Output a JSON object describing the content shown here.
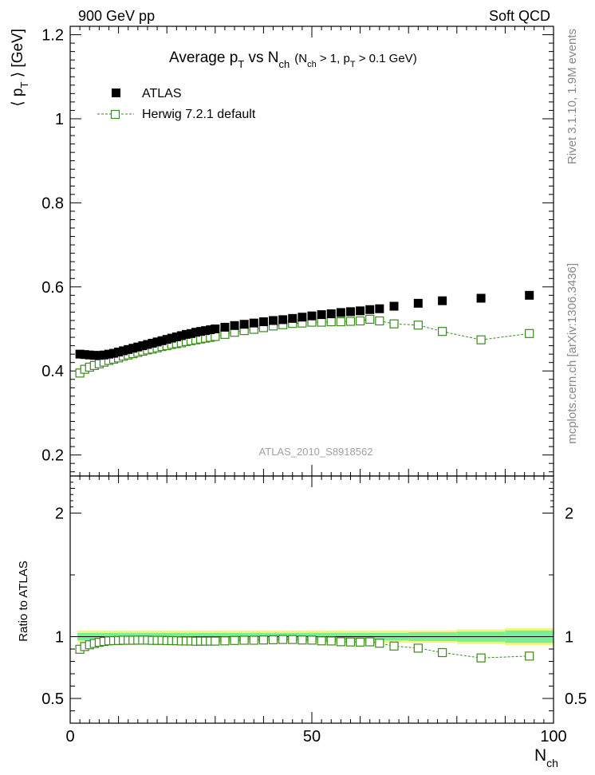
{
  "header": {
    "left": "900 GeV pp",
    "right": "Soft QCD"
  },
  "side_labels": {
    "rivet": "Rivet 3.1.10,  1.9M events",
    "mcplots": "mcplots.cern.ch [arXiv:1306.3436]"
  },
  "colors": {
    "data": "#000000",
    "mc": "#3a8a1a",
    "band_inner": "#79ee94",
    "band_outer": "#f5f57a",
    "watermark": "#a0a0a0"
  },
  "chart_data": {
    "type": "scatter",
    "title": {
      "main": "Average p",
      "sub1": "T",
      "mid": " vs N",
      "sub2": "ch",
      "cut_open": "(N",
      "cut_sub1": "ch",
      "cut_mid": " > 1, p",
      "cut_sub2": "T",
      "cut_close": " > 0.1 GeV)"
    },
    "watermark": "ATLAS_2010_S8918562",
    "ylabel": {
      "open": "⟨ p",
      "sub": "T",
      "close": " ⟩ [GeV]"
    },
    "ratio_ylabel": "Ratio to ATLAS",
    "xlabel": {
      "main": "N",
      "sub": "ch"
    },
    "xlim": [
      0,
      100
    ],
    "ylim": [
      0.15,
      1.22
    ],
    "ratio_ylim": [
      0.3,
      2.3
    ],
    "x_ticks": [
      0,
      50,
      100
    ],
    "x_tick_labels": [
      "0",
      "50",
      "100"
    ],
    "y_ticks": [
      0.2,
      0.4,
      0.6,
      0.8,
      1,
      1.2
    ],
    "y_tick_labels": [
      "0.2",
      "0.4",
      "0.6",
      "0.8",
      "1",
      "1.2"
    ],
    "ratio_ticks": [
      0.5,
      1,
      2
    ],
    "ratio_tick_labels": [
      "0.5",
      "1",
      "2"
    ],
    "legend": [
      {
        "name": "ATLAS",
        "marker": "filled-square"
      },
      {
        "name": "Herwig 7.2.1 default",
        "marker": "open-square-dashed"
      }
    ],
    "series": [
      {
        "name": "ATLAS",
        "x": [
          2,
          3,
          4,
          5,
          6,
          7,
          8,
          9,
          10,
          11,
          12,
          13,
          14,
          15,
          16,
          17,
          18,
          19,
          20,
          21,
          22,
          23,
          24,
          25,
          26,
          27,
          28,
          29,
          30,
          32,
          34,
          36,
          38,
          40,
          42,
          44,
          46,
          48,
          50,
          52,
          54,
          56,
          58,
          60,
          62,
          64,
          67,
          72,
          77,
          85,
          95
        ],
        "y": [
          0.44,
          0.439,
          0.438,
          0.437,
          0.437,
          0.438,
          0.44,
          0.442,
          0.445,
          0.448,
          0.451,
          0.454,
          0.457,
          0.46,
          0.463,
          0.466,
          0.469,
          0.472,
          0.475,
          0.478,
          0.481,
          0.484,
          0.487,
          0.489,
          0.492,
          0.494,
          0.496,
          0.498,
          0.5,
          0.504,
          0.508,
          0.511,
          0.514,
          0.517,
          0.52,
          0.522,
          0.525,
          0.528,
          0.531,
          0.534,
          0.536,
          0.539,
          0.541,
          0.543,
          0.546,
          0.548,
          0.554,
          0.561,
          0.567,
          0.573,
          0.58
        ]
      },
      {
        "name": "Herwig 7.2.1 default",
        "x": [
          2,
          3,
          4,
          5,
          6,
          7,
          8,
          9,
          10,
          11,
          12,
          13,
          14,
          15,
          16,
          17,
          18,
          19,
          20,
          21,
          22,
          23,
          24,
          25,
          26,
          27,
          28,
          29,
          30,
          32,
          34,
          36,
          38,
          40,
          42,
          44,
          46,
          48,
          50,
          52,
          54,
          56,
          58,
          60,
          62,
          64,
          67,
          72,
          77,
          85,
          95
        ],
        "y": [
          0.395,
          0.404,
          0.409,
          0.413,
          0.417,
          0.421,
          0.425,
          0.428,
          0.431,
          0.435,
          0.438,
          0.441,
          0.444,
          0.447,
          0.45,
          0.452,
          0.455,
          0.458,
          0.46,
          0.463,
          0.465,
          0.467,
          0.47,
          0.472,
          0.474,
          0.476,
          0.478,
          0.48,
          0.482,
          0.487,
          0.492,
          0.496,
          0.499,
          0.503,
          0.507,
          0.51,
          0.513,
          0.514,
          0.516,
          0.516,
          0.517,
          0.517,
          0.518,
          0.519,
          0.523,
          0.519,
          0.512,
          0.509,
          0.494,
          0.474,
          0.489
        ]
      }
    ],
    "ratio_series": {
      "name": "Herwig 7.2.1 default / ATLAS",
      "x": [
        2,
        3,
        4,
        5,
        6,
        7,
        8,
        9,
        10,
        11,
        12,
        13,
        14,
        15,
        16,
        17,
        18,
        19,
        20,
        21,
        22,
        23,
        24,
        25,
        26,
        27,
        28,
        29,
        30,
        32,
        34,
        36,
        38,
        40,
        42,
        44,
        46,
        48,
        50,
        52,
        54,
        56,
        58,
        60,
        62,
        64,
        67,
        72,
        77,
        85,
        95
      ],
      "y": [
        0.898,
        0.92,
        0.934,
        0.945,
        0.954,
        0.961,
        0.966,
        0.968,
        0.969,
        0.971,
        0.971,
        0.971,
        0.972,
        0.972,
        0.972,
        0.97,
        0.97,
        0.97,
        0.968,
        0.968,
        0.967,
        0.965,
        0.965,
        0.965,
        0.963,
        0.964,
        0.964,
        0.964,
        0.964,
        0.966,
        0.969,
        0.971,
        0.971,
        0.973,
        0.975,
        0.977,
        0.977,
        0.973,
        0.972,
        0.966,
        0.965,
        0.959,
        0.957,
        0.956,
        0.958,
        0.947,
        0.924,
        0.907,
        0.871,
        0.828,
        0.843
      ]
    },
    "ratio_band": {
      "x_edges": [
        1.5,
        50,
        70,
        80,
        90,
        100
      ],
      "inner_halfwidth": [
        0.03,
        0.03,
        0.035,
        0.04,
        0.05
      ],
      "outer_halfwidth": [
        0.05,
        0.05,
        0.05,
        0.06,
        0.07
      ]
    }
  }
}
